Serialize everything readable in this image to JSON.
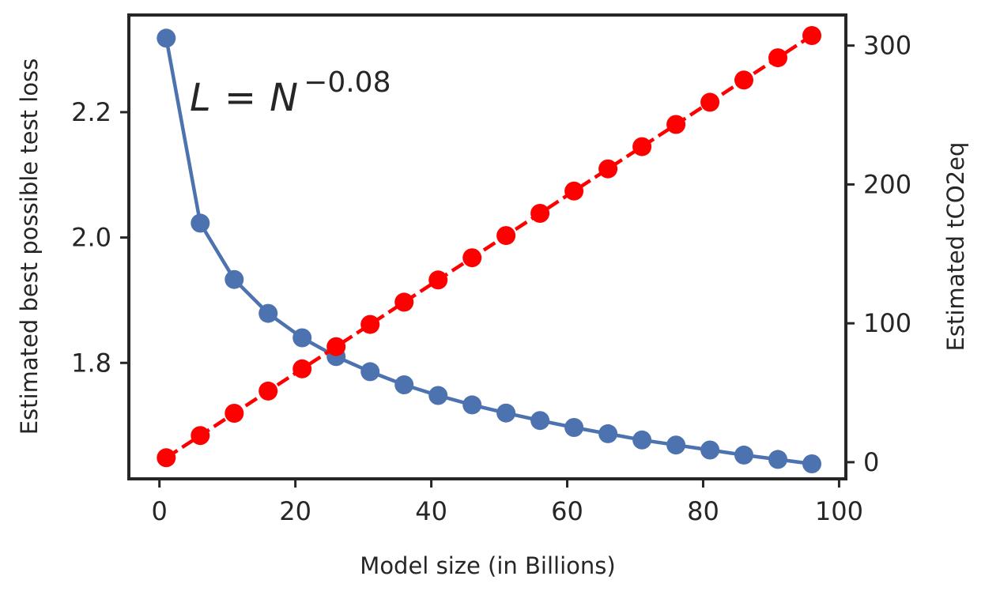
{
  "chart_data": {
    "type": "line",
    "title": "",
    "xlabel": "Model size (in Billions)",
    "ylabel_left": "Estimated best possible test loss",
    "ylabel_right": "Estimated tCO2eq",
    "annotation": {
      "text": "L = N",
      "base_L": "L",
      "equals": "=",
      "base_N": "N",
      "exponent": "−0.08"
    },
    "xlim": [
      -4.5,
      101
    ],
    "ylim_left": [
      1.615,
      2.355
    ],
    "ylim_right": [
      -12,
      322
    ],
    "x_ticks": [
      0,
      20,
      40,
      60,
      80,
      100
    ],
    "x_tick_labels": [
      "0",
      "20",
      "40",
      "60",
      "80",
      "100"
    ],
    "y_left_ticks": [
      1.8,
      2.0,
      2.2
    ],
    "y_left_tick_labels": [
      "1.8",
      "2.0",
      "2.2"
    ],
    "y_right_ticks": [
      0,
      100,
      200,
      300
    ],
    "y_right_tick_labels": [
      "0",
      "100",
      "200",
      "300"
    ],
    "grid": false,
    "x": [
      1,
      6,
      11,
      16,
      21,
      26,
      31,
      36,
      41,
      46,
      51,
      56,
      61,
      66,
      71,
      76,
      81,
      86,
      91,
      96
    ],
    "series": [
      {
        "name": "Estimated best possible test loss",
        "axis": "left",
        "color": "#4c72b0",
        "line_style": "solid",
        "values": [
          2.318,
          2.023,
          1.933,
          1.879,
          1.84,
          1.81,
          1.786,
          1.765,
          1.748,
          1.733,
          1.72,
          1.708,
          1.697,
          1.687,
          1.677,
          1.669,
          1.661,
          1.653,
          1.646,
          1.639
        ]
      },
      {
        "name": "Estimated tCO2eq",
        "axis": "right",
        "color": "#ff0000",
        "line_style": "dashed",
        "values": [
          3.2,
          19.2,
          35.2,
          51.2,
          67.2,
          83.2,
          99.2,
          115.2,
          131.2,
          147.2,
          163.2,
          179.2,
          195.2,
          211.2,
          227.2,
          243.2,
          259.2,
          275.2,
          291.2,
          307.2
        ]
      }
    ]
  }
}
